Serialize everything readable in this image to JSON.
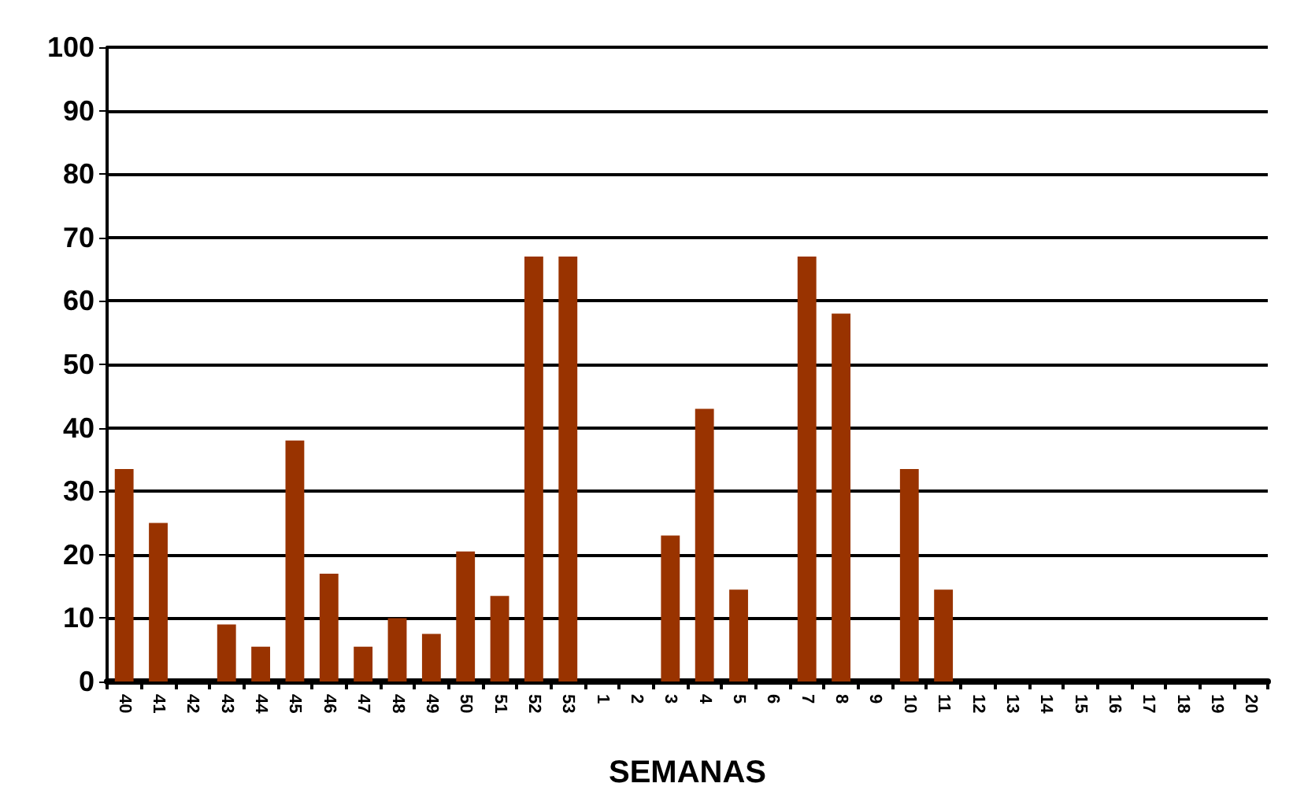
{
  "chart_data": {
    "type": "bar",
    "xlabel": "SEMANAS",
    "categories": [
      "40",
      "41",
      "42",
      "43",
      "44",
      "45",
      "46",
      "47",
      "48",
      "49",
      "50",
      "51",
      "52",
      "53",
      "1",
      "2",
      "3",
      "4",
      "5",
      "6",
      "7",
      "8",
      "9",
      "10",
      "11",
      "12",
      "13",
      "14",
      "15",
      "16",
      "17",
      "18",
      "19",
      "20"
    ],
    "values": [
      33.5,
      25,
      0,
      9,
      5.5,
      38,
      17,
      5.5,
      10,
      7.5,
      20.5,
      13.5,
      67,
      67,
      0,
      0,
      23,
      43,
      14.5,
      0,
      67,
      58,
      0,
      33.5,
      14.5,
      0,
      0,
      0,
      0,
      0,
      0,
      0,
      0,
      0
    ],
    "color": "#993300",
    "ylim": [
      0,
      100
    ],
    "yticks": [
      0,
      10,
      20,
      30,
      40,
      50,
      60,
      70,
      80,
      90,
      100
    ],
    "grid": "y"
  }
}
